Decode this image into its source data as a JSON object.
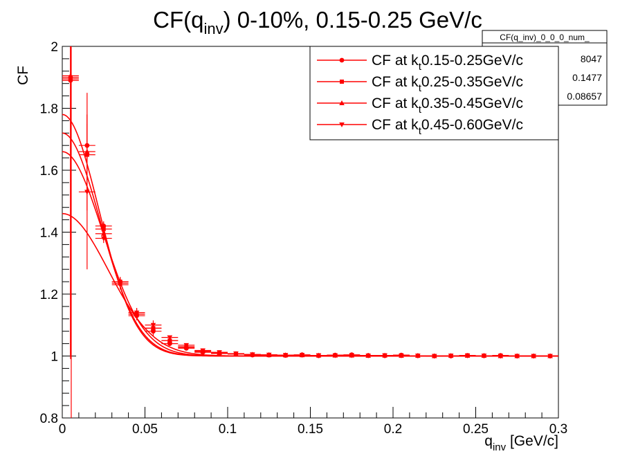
{
  "title": {
    "main": "CF(q",
    "sub": "inv",
    "rest": ") 0-10%, 0.15-0.25 GeV/c"
  },
  "axes": {
    "ylabel": "CF",
    "xlabel": {
      "main": "q",
      "sub": "inv",
      "rest": " [GeV/c]"
    },
    "xticks": [
      "0",
      "0.05",
      "0.1",
      "0.15",
      "0.2",
      "0.25",
      "0.3"
    ],
    "yticks": [
      "0.8",
      "1",
      "1.2",
      "1.4",
      "1.6",
      "1.8",
      "2"
    ]
  },
  "stats": {
    "name": "CF(q_inv)_0_0_0_num_",
    "values": [
      "8047",
      "0.1477",
      "0.08657"
    ]
  },
  "legend": [
    {
      "pre": "CF at k",
      "sub": "t",
      "post": "0.15-0.25GeV/c",
      "marker": "circle"
    },
    {
      "pre": "CF at k",
      "sub": "t",
      "post": "0.25-0.35GeV/c",
      "marker": "square"
    },
    {
      "pre": "CF at k",
      "sub": "t",
      "post": "0.35-0.45GeV/c",
      "marker": "triangle-up"
    },
    {
      "pre": "CF at k",
      "sub": "t",
      "post": "0.45-0.60GeV/c",
      "marker": "triangle-down"
    }
  ],
  "chart_data": {
    "type": "scatter",
    "color": "#ff0000",
    "xlim": [
      0,
      0.3
    ],
    "ylim": [
      0.8,
      2.0
    ],
    "x": [
      0.005,
      0.015,
      0.025,
      0.035,
      0.045,
      0.055,
      0.065,
      0.075,
      0.085,
      0.095,
      0.105,
      0.115,
      0.125,
      0.135,
      0.145,
      0.155,
      0.165,
      0.175,
      0.185,
      0.195,
      0.205,
      0.215,
      0.225,
      0.235,
      0.245,
      0.255,
      0.265,
      0.275,
      0.285,
      0.295
    ],
    "series": [
      {
        "name": "CF at kt0.15-0.25GeV/c",
        "marker": "circle",
        "y": [
          1.89,
          1.68,
          1.42,
          1.24,
          1.13,
          1.08,
          1.04,
          1.025,
          1.012,
          1.008,
          1.007,
          1.003,
          1.003,
          1.002,
          1.004,
          1.001,
          1.003,
          1.004,
          1.002,
          1.001,
          1.003,
          1.001,
          1.0,
          1.0,
          1.002,
          1.001,
          1.002,
          1.0,
          1.0,
          1.0
        ],
        "fit": {
          "amplitude": 0.78,
          "width": 0.028
        }
      },
      {
        "name": "CF at kt0.25-0.35GeV/c",
        "marker": "square",
        "y": [
          1.9,
          1.65,
          1.41,
          1.24,
          1.135,
          1.09,
          1.05,
          1.028,
          1.015,
          1.01,
          1.006,
          1.004,
          1.003,
          1.002,
          1.003,
          1.002,
          1.002,
          1.003,
          1.001,
          1.002,
          1.002,
          1.001,
          1.0,
          1.001,
          1.002,
          1.001,
          1.001,
          1.0,
          1.0,
          1.0
        ],
        "fit": {
          "amplitude": 0.72,
          "width": 0.029
        }
      },
      {
        "name": "CF at kt0.35-0.45GeV/c",
        "marker": "triangle-up",
        "y": [
          1.905,
          1.66,
          1.395,
          1.235,
          1.14,
          1.09,
          1.05,
          1.03,
          1.016,
          1.01,
          1.007,
          1.005,
          1.004,
          1.003,
          1.003,
          1.002,
          1.002,
          1.002,
          1.001,
          1.002,
          1.001,
          1.001,
          1.0,
          1.001,
          1.001,
          1.001,
          1.0,
          1.0,
          1.0,
          1.0
        ],
        "fit": {
          "amplitude": 0.66,
          "width": 0.031
        }
      },
      {
        "name": "CF at kt0.45-0.60GeV/c",
        "marker": "triangle-down",
        "y": [
          1.895,
          1.53,
          1.38,
          1.23,
          1.14,
          1.1,
          1.06,
          1.035,
          1.018,
          1.012,
          1.008,
          1.005,
          1.004,
          1.003,
          1.003,
          1.002,
          1.002,
          1.002,
          1.001,
          1.002,
          1.001,
          1.001,
          1.0,
          1.001,
          1.001,
          1.001,
          1.0,
          1.0,
          1.0,
          1.0
        ],
        "fit": {
          "amplitude": 0.46,
          "width": 0.035
        }
      }
    ]
  }
}
